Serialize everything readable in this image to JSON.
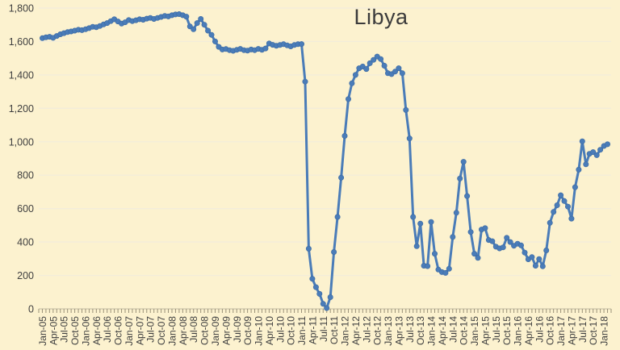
{
  "chart_data": {
    "type": "line",
    "title": "Libya",
    "categories": [
      "Jan-05",
      "Feb-05",
      "Mar-05",
      "Apr-05",
      "May-05",
      "Jun-05",
      "Jul-05",
      "Aug-05",
      "Sep-05",
      "Oct-05",
      "Nov-05",
      "Dec-05",
      "Jan-06",
      "Feb-06",
      "Mar-06",
      "Apr-06",
      "May-06",
      "Jun-06",
      "Jul-06",
      "Aug-06",
      "Sep-06",
      "Oct-06",
      "Nov-06",
      "Dec-06",
      "Jan-07",
      "Feb-07",
      "Mar-07",
      "Apr-07",
      "May-07",
      "Jun-07",
      "Jul-07",
      "Aug-07",
      "Sep-07",
      "Oct-07",
      "Nov-07",
      "Dec-07",
      "Jan-08",
      "Feb-08",
      "Mar-08",
      "Apr-08",
      "May-08",
      "Jun-08",
      "Jul-08",
      "Aug-08",
      "Sep-08",
      "Oct-08",
      "Nov-08",
      "Dec-08",
      "Jan-09",
      "Feb-09",
      "Mar-09",
      "Apr-09",
      "May-09",
      "Jun-09",
      "Jul-09",
      "Aug-09",
      "Sep-09",
      "Oct-09",
      "Nov-09",
      "Dec-09",
      "Jan-10",
      "Feb-10",
      "Mar-10",
      "Apr-10",
      "May-10",
      "Jun-10",
      "Jul-10",
      "Aug-10",
      "Sep-10",
      "Oct-10",
      "Nov-10",
      "Dec-10",
      "Jan-11",
      "Feb-11",
      "Mar-11",
      "Apr-11",
      "May-11",
      "Jun-11",
      "Jul-11",
      "Aug-11",
      "Sep-11",
      "Oct-11",
      "Nov-11",
      "Dec-11",
      "Jan-12",
      "Feb-12",
      "Mar-12",
      "Apr-12",
      "May-12",
      "Jun-12",
      "Jul-12",
      "Aug-12",
      "Sep-12",
      "Oct-12",
      "Nov-12",
      "Dec-12",
      "Jan-13",
      "Feb-13",
      "Mar-13",
      "Apr-13",
      "May-13",
      "Jun-13",
      "Jul-13",
      "Aug-13",
      "Sep-13",
      "Oct-13",
      "Nov-13",
      "Dec-13",
      "Jan-14",
      "Feb-14",
      "Mar-14",
      "Apr-14",
      "May-14",
      "Jun-14",
      "Jul-14",
      "Aug-14",
      "Sep-14",
      "Oct-14",
      "Nov-14",
      "Dec-14",
      "Jan-15",
      "Feb-15",
      "Mar-15",
      "Apr-15",
      "May-15",
      "Jun-15",
      "Jul-15",
      "Aug-15",
      "Sep-15",
      "Oct-15",
      "Nov-15",
      "Dec-15",
      "Jan-16",
      "Feb-16",
      "Mar-16",
      "Apr-16",
      "May-16",
      "Jun-16",
      "Jul-16",
      "Aug-16",
      "Sep-16",
      "Oct-16",
      "Nov-16",
      "Dec-16",
      "Jan-17",
      "Feb-17",
      "Mar-17",
      "Apr-17",
      "May-17",
      "Jun-17",
      "Jul-17",
      "Aug-17",
      "Sep-17",
      "Oct-17",
      "Nov-17",
      "Dec-17",
      "Jan-18",
      "Feb-18"
    ],
    "values": [
      1620,
      1625,
      1628,
      1622,
      1633,
      1643,
      1650,
      1656,
      1660,
      1665,
      1670,
      1668,
      1673,
      1680,
      1688,
      1685,
      1693,
      1702,
      1710,
      1722,
      1733,
      1720,
      1707,
      1715,
      1728,
      1722,
      1727,
      1733,
      1730,
      1737,
      1741,
      1735,
      1741,
      1747,
      1753,
      1750,
      1757,
      1762,
      1764,
      1757,
      1749,
      1690,
      1673,
      1710,
      1735,
      1700,
      1665,
      1640,
      1600,
      1568,
      1552,
      1555,
      1548,
      1544,
      1550,
      1556,
      1548,
      1545,
      1552,
      1548,
      1556,
      1550,
      1558,
      1588,
      1580,
      1574,
      1579,
      1584,
      1577,
      1571,
      1579,
      1584,
      1585,
      1360,
      360,
      180,
      130,
      90,
      30,
      5,
      70,
      340,
      550,
      785,
      1035,
      1255,
      1350,
      1400,
      1440,
      1450,
      1435,
      1470,
      1490,
      1510,
      1495,
      1455,
      1410,
      1405,
      1420,
      1440,
      1410,
      1190,
      1020,
      550,
      375,
      510,
      258,
      256,
      520,
      330,
      235,
      220,
      215,
      240,
      430,
      575,
      780,
      880,
      675,
      460,
      330,
      305,
      475,
      483,
      412,
      405,
      372,
      362,
      368,
      425,
      400,
      378,
      390,
      380,
      337,
      297,
      310,
      258,
      298,
      255,
      350,
      515,
      580,
      620,
      680,
      645,
      612,
      540,
      728,
      833,
      1003,
      865,
      928,
      938,
      920,
      952,
      975,
      985
    ],
    "ylim": [
      0,
      1800
    ],
    "y_tick_step": 200,
    "y_tick_labels": [
      "0",
      "200",
      "400",
      "600",
      "800",
      "1,000",
      "1,200",
      "1,400",
      "1,600",
      "1,800"
    ],
    "x_label_every_n_months": 3,
    "grid": "horizontal",
    "legend": "none",
    "colors": {
      "background": "#fcf2cf",
      "line": "#4a7cb8",
      "marker": "#4a7cb8",
      "marker_edge": "#3c6aa3",
      "gridline": "#f3edda",
      "axis_line": "#cfc6a8",
      "tick": "#9a9178",
      "title_text": "#3b3b3b",
      "axis_text": "#404040"
    }
  }
}
